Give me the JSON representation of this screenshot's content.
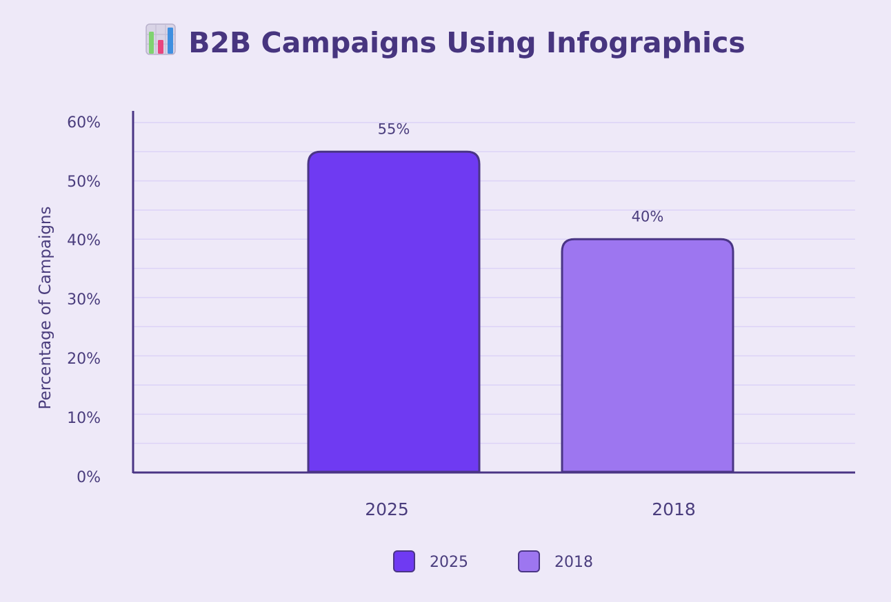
{
  "chart_data": {
    "type": "bar",
    "title": "B2B Campaigns Using Infographics",
    "title_icon": "bar-chart-emoji-icon",
    "categories": [
      "2025",
      "2018"
    ],
    "values": [
      55,
      40
    ],
    "data_labels": [
      "55%",
      "40%"
    ],
    "bar_colors": [
      "#6f3af2",
      "#9d76f0"
    ],
    "bar_border_color": "#4a3585",
    "ylabel": "Percentage of Campaigns",
    "xlabel": "",
    "ylim": [
      0,
      62
    ],
    "yticks": [
      0,
      10,
      20,
      30,
      40,
      50,
      60
    ],
    "ytick_labels": [
      "0%",
      "10%",
      "20%",
      "30%",
      "40%",
      "50%",
      "60%"
    ],
    "grid": true,
    "grid_color": "#dcd3f7",
    "axis_color": "#4a3585",
    "legend": {
      "placement": "bottom-center",
      "entries": [
        {
          "label": "2025",
          "color": "#6f3af2"
        },
        {
          "label": "2018",
          "color": "#9d76f0"
        }
      ]
    }
  }
}
